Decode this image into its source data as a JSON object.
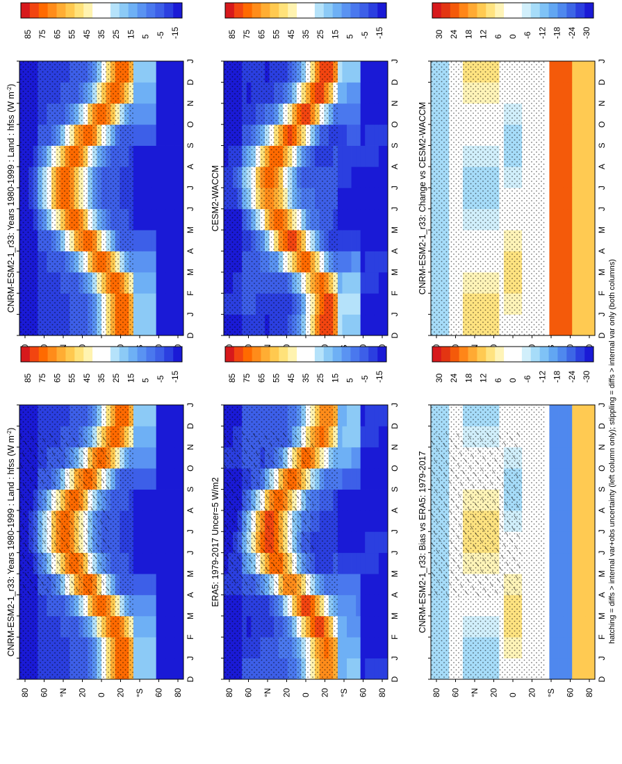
{
  "figure": {
    "footnote": "hatching = diffs > internal var+obs uncertainty (left column only); stippling = diffs > internal var only (both columns)"
  },
  "months": [
    "D",
    "J",
    "F",
    "M",
    "A",
    "M",
    "J",
    "J",
    "A",
    "S",
    "O",
    "N",
    "D",
    "J"
  ],
  "lat_ticks": [
    "80",
    "60",
    "°N",
    "20",
    "0",
    "20",
    "°S",
    "60",
    "80"
  ],
  "colors": {
    "abs_scale": [
      "#1a1ad6",
      "#2b3fe0",
      "#3d5fe8",
      "#4a78ee",
      "#5a93f2",
      "#6eb0f5",
      "#8ccaf6",
      "#b5e2fa",
      "#ffffff",
      "#ffffff",
      "#fff3b0",
      "#ffe27a",
      "#ffc94f",
      "#ffad33",
      "#ff8c1a",
      "#ff6a00",
      "#f24510",
      "#d7191c"
    ],
    "diff_scale": [
      "#1a1ad6",
      "#2b3fe0",
      "#3d66e6",
      "#4f88ee",
      "#62a6f2",
      "#7fc2f6",
      "#a6dcf9",
      "#d1effb",
      "#ffffff",
      "#ffffff",
      "#fff4b8",
      "#ffe380",
      "#ffca52",
      "#ffaa33",
      "#ff8618",
      "#f45a0a",
      "#e33512",
      "#d7191c"
    ]
  },
  "chart_data": [
    {
      "type": "heatmap",
      "title": "CNRM-ESM2-1_r33: Years 1980-1999 : Land : hfss (W m",
      "title_sup": "-2",
      "title_end": ")",
      "xlabel": "",
      "ylabel": "",
      "x": [
        "D",
        "J",
        "F",
        "M",
        "A",
        "M",
        "J",
        "J",
        "A",
        "S",
        "O",
        "N",
        "D",
        "J"
      ],
      "y_ticks": [
        "80",
        "60",
        "°N",
        "20",
        "0",
        "20",
        "°S",
        "60",
        "80"
      ],
      "ylim": [
        -90,
        90
      ],
      "colorbar_labels": [
        "85",
        "75",
        "65",
        "55",
        "45",
        "35",
        "25",
        "15",
        "5",
        "-5",
        "-15"
      ],
      "zlim": [
        -20,
        90
      ],
      "hatching": true,
      "stippling": true,
      "field": "model_abs"
    },
    {
      "type": "heatmap",
      "title": "CNRM-ESM2-1_r33: Years 1980-1999 : Land : hfss (W m",
      "title_sup": "-2",
      "title_end": ")",
      "xlabel": "",
      "ylabel": "",
      "x": [
        "D",
        "J",
        "F",
        "M",
        "A",
        "M",
        "J",
        "J",
        "A",
        "S",
        "O",
        "N",
        "D",
        "J"
      ],
      "y_ticks": [
        "80",
        "60",
        "°N",
        "20",
        "0",
        "20",
        "°S",
        "60",
        "80"
      ],
      "ylim": [
        -90,
        90
      ],
      "colorbar_labels": [
        "85",
        "75",
        "65",
        "55",
        "45",
        "35",
        "25",
        "15",
        "5",
        "-5",
        "-15"
      ],
      "zlim": [
        -20,
        90
      ],
      "hatching": false,
      "stippling": true,
      "field": "model_abs"
    },
    {
      "type": "heatmap",
      "title": "ERA5: 1979-2017 Uncer=5 W/m2",
      "xlabel": "",
      "ylabel": "",
      "x": [
        "D",
        "J",
        "F",
        "M",
        "A",
        "M",
        "J",
        "J",
        "A",
        "S",
        "O",
        "N",
        "D",
        "J"
      ],
      "y_ticks": [
        "80",
        "60",
        "°N",
        "20",
        "0",
        "20",
        "°S",
        "60",
        "80"
      ],
      "ylim": [
        -90,
        90
      ],
      "colorbar_labels": [
        "85",
        "75",
        "65",
        "55",
        "45",
        "35",
        "25",
        "15",
        "5",
        "-5",
        "-15"
      ],
      "zlim": [
        -20,
        90
      ],
      "hatching": true,
      "stippling": true,
      "field": "obs_abs"
    },
    {
      "type": "heatmap",
      "title": "CESM2-WACCM",
      "xlabel": "",
      "ylabel": "",
      "x": [
        "D",
        "J",
        "F",
        "M",
        "A",
        "M",
        "J",
        "J",
        "A",
        "S",
        "O",
        "N",
        "D",
        "J"
      ],
      "y_ticks": [
        "80",
        "60",
        "°N",
        "20",
        "0",
        "20",
        "°S",
        "60",
        "80"
      ],
      "ylim": [
        -90,
        90
      ],
      "colorbar_labels": [
        "85",
        "75",
        "65",
        "55",
        "45",
        "35",
        "25",
        "15",
        "5",
        "-5",
        "-15"
      ],
      "zlim": [
        -20,
        90
      ],
      "hatching": false,
      "stippling": true,
      "field": "cmp_abs"
    },
    {
      "type": "heatmap",
      "title": "CNRM-ESM2-1_r33: Bias vs ERA5: 1979-2017",
      "xlabel": "",
      "ylabel": "",
      "x": [
        "D",
        "J",
        "F",
        "M",
        "A",
        "M",
        "J",
        "J",
        "A",
        "S",
        "O",
        "N",
        "D",
        "J"
      ],
      "y_ticks": [
        "80",
        "60",
        "°N",
        "20",
        "0",
        "20",
        "°S",
        "60",
        "80"
      ],
      "ylim": [
        -90,
        90
      ],
      "colorbar_labels": [
        "30",
        "24",
        "18",
        "12",
        "6",
        "0",
        "-6",
        "-12",
        "-18",
        "-24",
        "-30"
      ],
      "zlim": [
        -33,
        33
      ],
      "hatching": true,
      "stippling": true,
      "field": "bias"
    },
    {
      "type": "heatmap",
      "title": "CNRM-ESM2-1_r33: Change vs CESM2-WACCM",
      "xlabel": "",
      "ylabel": "",
      "x": [
        "D",
        "J",
        "F",
        "M",
        "A",
        "M",
        "J",
        "J",
        "A",
        "S",
        "O",
        "N",
        "D",
        "J"
      ],
      "y_ticks": [
        "80",
        "60",
        "°N",
        "20",
        "0",
        "20",
        "°S",
        "60",
        "80"
      ],
      "ylim": [
        -90,
        90
      ],
      "colorbar_labels": [
        "30",
        "24",
        "18",
        "12",
        "6",
        "0",
        "-6",
        "-12",
        "-18",
        "-24",
        "-30"
      ],
      "zlim": [
        -33,
        33
      ],
      "hatching": false,
      "stippling": true,
      "field": "change"
    }
  ]
}
